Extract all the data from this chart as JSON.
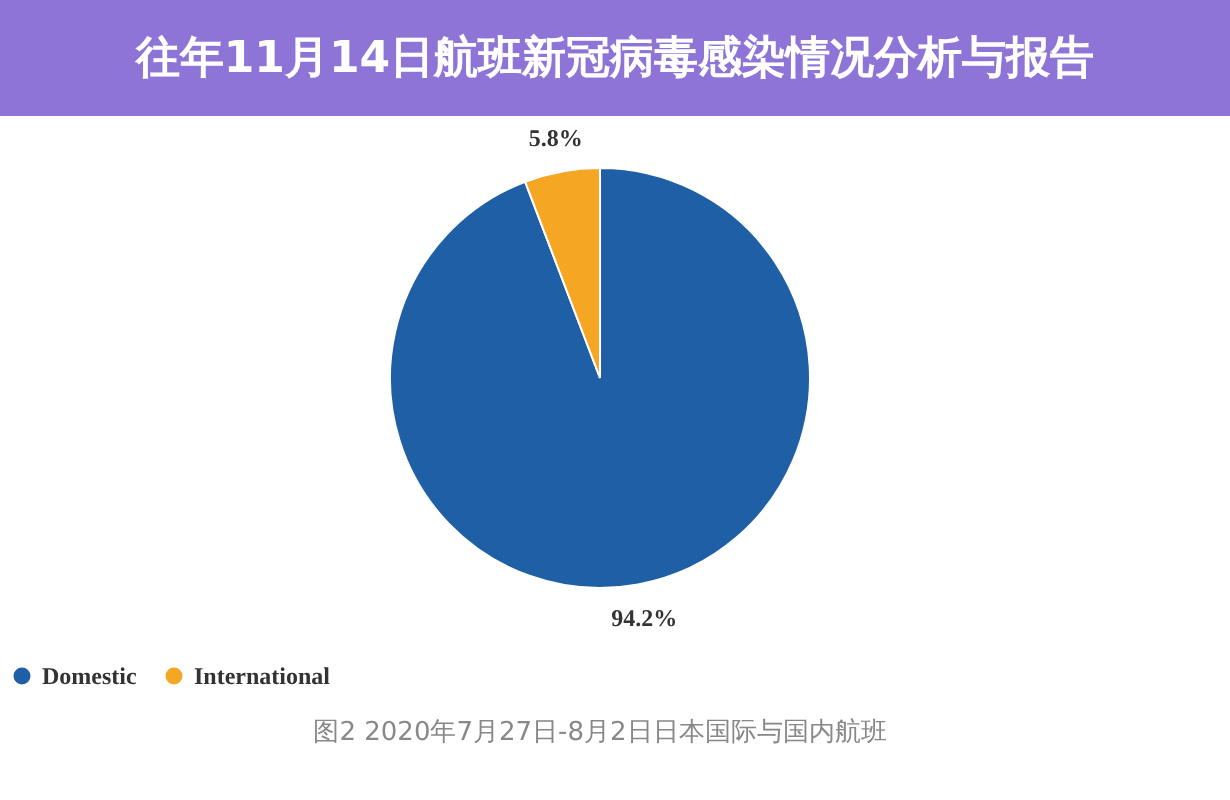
{
  "chart_data": {
    "type": "pie",
    "title": "往年11月14日航班新冠病毒感染情况分析与报告",
    "categories": [
      "Domestic",
      "International"
    ],
    "values": [
      94.2,
      5.8
    ],
    "colors": [
      "#1f5fa6",
      "#f5a623"
    ],
    "value_labels": [
      "94.2%",
      "5.8%"
    ],
    "legend": "bottom",
    "annotations": [
      "图2  2020年7月27日-8月2日日本国际与国内航班"
    ]
  }
}
